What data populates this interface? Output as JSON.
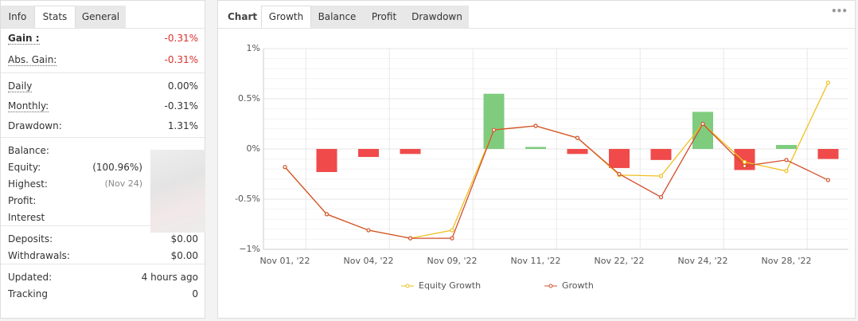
{
  "stats": {
    "tabs": [
      "Info",
      "Stats",
      "General"
    ],
    "active_tab": "Stats",
    "groups": [
      [
        {
          "label": "Gain :",
          "value": "-0.31%",
          "color": "#d9302c",
          "dotted": true,
          "bold": true
        },
        {
          "label": "Abs. Gain:",
          "value": "-0.31%",
          "color": "#d9302c",
          "dotted": true
        }
      ],
      [
        {
          "label": "Daily",
          "value": "0.00%",
          "dotted": true
        },
        {
          "label": "Monthly:",
          "value": "-0.31%",
          "dotted": true
        },
        {
          "label": "Drawdown:",
          "value": "1.31%"
        }
      ],
      [
        {
          "label": "Balance:"
        },
        {
          "label": "Equity:",
          "value": "(100.96%)"
        },
        {
          "label": "Highest:",
          "value": "(Nov 24)",
          "color": "#888"
        },
        {
          "label": "Profit:"
        },
        {
          "label": "Interest"
        }
      ],
      [
        {
          "label": "Deposits:",
          "value": "$0.00"
        },
        {
          "label": "Withdrawals:",
          "value": "$0.00"
        }
      ],
      [
        {
          "label": "Updated:",
          "value": "4 hours ago"
        },
        {
          "label": "Tracking",
          "value": "0"
        }
      ]
    ]
  },
  "panel": {
    "title": "Chart",
    "tabs": [
      "Growth",
      "Balance",
      "Profit",
      "Drawdown"
    ],
    "active_tab": "Growth"
  },
  "chart_data": {
    "type": "line",
    "categories": [
      "Nov 01, '22",
      null,
      "Nov 04, '22",
      null,
      "Nov 09, '22",
      null,
      "Nov 11, '22",
      null,
      "Nov 22, '22",
      null,
      "Nov 24, '22",
      null,
      "Nov 28, '22",
      null
    ],
    "bars": {
      "values": [
        null,
        -0.23,
        -0.08,
        -0.05,
        null,
        0.55,
        0.02,
        -0.05,
        -0.19,
        -0.11,
        0.37,
        -0.21,
        0.04,
        -0.1
      ],
      "positive_color": "#7fcc7f",
      "negative_color": "#f04a4a"
    },
    "series": [
      {
        "name": "Equity Growth",
        "color": "#f0c020",
        "values": [
          -0.18,
          -0.65,
          -0.81,
          -0.89,
          -0.81,
          0.19,
          0.23,
          0.11,
          -0.26,
          -0.27,
          0.25,
          -0.13,
          -0.22,
          0.66
        ]
      },
      {
        "name": "Growth",
        "color": "#d2502c",
        "values": [
          -0.18,
          -0.65,
          -0.81,
          -0.89,
          -0.89,
          0.19,
          0.23,
          0.11,
          -0.25,
          -0.48,
          0.25,
          -0.17,
          -0.11,
          -0.31
        ]
      }
    ],
    "ylim": [
      -1,
      1
    ],
    "yticks": [
      {
        "value": -1,
        "label": "−1%"
      },
      {
        "value": -0.5,
        "label": "-0.5%"
      },
      {
        "value": 0,
        "label": "0%"
      },
      {
        "value": 0.5,
        "label": "0.5%"
      },
      {
        "value": 1,
        "label": "1%"
      }
    ],
    "grid": true
  }
}
